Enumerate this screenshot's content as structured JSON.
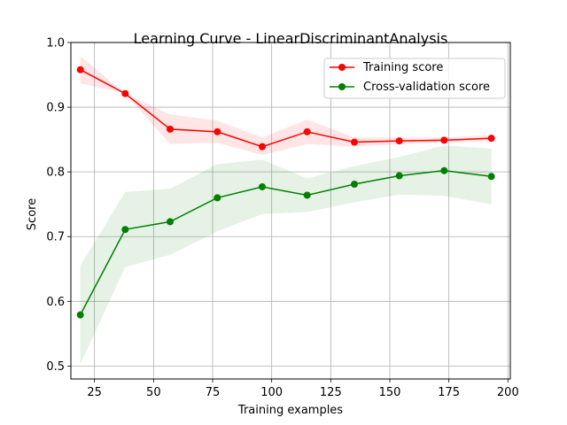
{
  "chart_data": {
    "type": "line",
    "title": "Learning Curve - LinearDiscriminantAnalysis",
    "xlabel": "Training examples",
    "ylabel": "Score",
    "xlim": [
      15,
      201
    ],
    "ylim": [
      0.48,
      1.0
    ],
    "xticks": [
      25,
      50,
      75,
      100,
      125,
      150,
      175,
      200
    ],
    "yticks": [
      0.5,
      0.6,
      0.7,
      0.8,
      0.9,
      1.0
    ],
    "grid": true,
    "legend_position": "top-right",
    "x": [
      19,
      38,
      57,
      77,
      96,
      115,
      135,
      154,
      173,
      193
    ],
    "series": [
      {
        "name": "Training score",
        "color": "#ff0000",
        "band_color": "#ff0000",
        "values": [
          0.958,
          0.921,
          0.866,
          0.862,
          0.839,
          0.862,
          0.846,
          0.848,
          0.849,
          0.852
        ],
        "band_lower": [
          0.937,
          0.921,
          0.843,
          0.845,
          0.826,
          0.843,
          0.839,
          0.843,
          0.845,
          0.847
        ],
        "band_upper": [
          0.979,
          0.921,
          0.889,
          0.879,
          0.853,
          0.881,
          0.853,
          0.853,
          0.853,
          0.857
        ]
      },
      {
        "name": "Cross-validation score",
        "color": "#008000",
        "band_color": "#008000",
        "values": [
          0.579,
          0.711,
          0.723,
          0.76,
          0.777,
          0.764,
          0.781,
          0.794,
          0.802,
          0.793
        ],
        "band_lower": [
          0.503,
          0.653,
          0.672,
          0.708,
          0.735,
          0.738,
          0.753,
          0.765,
          0.763,
          0.75
        ],
        "band_upper": [
          0.655,
          0.769,
          0.774,
          0.812,
          0.819,
          0.79,
          0.809,
          0.823,
          0.841,
          0.836
        ]
      }
    ]
  }
}
